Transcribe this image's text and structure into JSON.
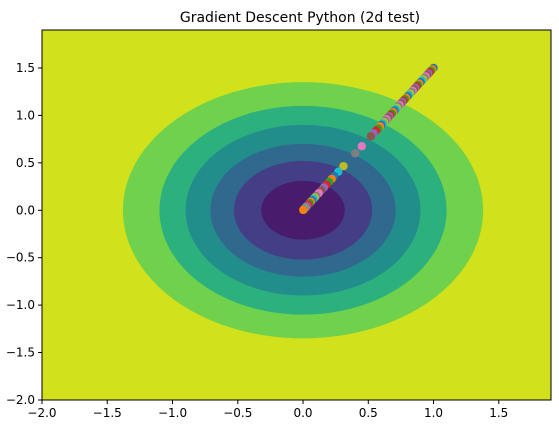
{
  "chart_data": {
    "type": "scatter",
    "subtype": "contour-with-scatter",
    "title": "Gradient Descent Python (2d test)",
    "xlabel": "",
    "ylabel": "",
    "xlim": [
      -2.0,
      1.9
    ],
    "ylim": [
      -2.0,
      1.9
    ],
    "x_ticks": [
      -2.0,
      -1.5,
      -1.0,
      -0.5,
      0.0,
      0.5,
      1.0,
      1.5
    ],
    "y_ticks": [
      -2.0,
      -1.5,
      -1.0,
      -0.5,
      0.0,
      0.5,
      1.0,
      1.5
    ],
    "x_tick_labels": [
      "−2.0",
      "−1.5",
      "−1.0",
      "−0.5",
      "0.0",
      "0.5",
      "1.0",
      "1.5"
    ],
    "y_tick_labels": [
      "−2.0",
      "−1.5",
      "−1.0",
      "−0.5",
      "0.0",
      "0.5",
      "1.0",
      "1.5"
    ],
    "grid": false,
    "legend": "none",
    "contour": {
      "center": [
        0.0,
        0.0
      ],
      "background_color": "#d1e11c",
      "levels": [
        {
          "x_radius": 1.38,
          "y_radius": 1.35,
          "color": "#6fd14c"
        },
        {
          "x_radius": 1.1,
          "y_radius": 1.1,
          "color": "#2cb17e"
        },
        {
          "x_radius": 0.9,
          "y_radius": 0.9,
          "color": "#218e8c"
        },
        {
          "x_radius": 0.71,
          "y_radius": 0.7,
          "color": "#30688e"
        },
        {
          "x_radius": 0.53,
          "y_radius": 0.52,
          "color": "#433e85"
        },
        {
          "x_radius": 0.32,
          "y_radius": 0.31,
          "color": "#481b6d"
        }
      ]
    },
    "palette": [
      "#1f77b4",
      "#ff7f0e",
      "#2ca02c",
      "#d62728",
      "#9467bd",
      "#8c564b",
      "#e377c2",
      "#7f7f7f",
      "#bcbd22",
      "#17becf"
    ],
    "points": [
      {
        "x": 1.0,
        "y": 1.5
      },
      {
        "x": 0.99,
        "y": 1.485
      },
      {
        "x": 0.98,
        "y": 1.47
      },
      {
        "x": 0.97,
        "y": 1.455
      },
      {
        "x": 0.96,
        "y": 1.44
      },
      {
        "x": 0.95,
        "y": 1.425
      },
      {
        "x": 0.94,
        "y": 1.41
      },
      {
        "x": 0.93,
        "y": 1.395
      },
      {
        "x": 0.92,
        "y": 1.38
      },
      {
        "x": 0.91,
        "y": 1.365
      },
      {
        "x": 0.9,
        "y": 1.35
      },
      {
        "x": 0.89,
        "y": 1.335
      },
      {
        "x": 0.88,
        "y": 1.32
      },
      {
        "x": 0.87,
        "y": 1.305
      },
      {
        "x": 0.86,
        "y": 1.29
      },
      {
        "x": 0.85,
        "y": 1.275
      },
      {
        "x": 0.84,
        "y": 1.26
      },
      {
        "x": 0.83,
        "y": 1.245
      },
      {
        "x": 0.82,
        "y": 1.23
      },
      {
        "x": 0.81,
        "y": 1.215
      },
      {
        "x": 0.8,
        "y": 1.2
      },
      {
        "x": 0.79,
        "y": 1.185
      },
      {
        "x": 0.78,
        "y": 1.17
      },
      {
        "x": 0.77,
        "y": 1.155
      },
      {
        "x": 0.76,
        "y": 1.14
      },
      {
        "x": 0.75,
        "y": 1.125
      },
      {
        "x": 0.74,
        "y": 1.11
      },
      {
        "x": 0.73,
        "y": 1.095
      },
      {
        "x": 0.72,
        "y": 1.08
      },
      {
        "x": 0.71,
        "y": 1.065
      },
      {
        "x": 0.7,
        "y": 1.05
      },
      {
        "x": 0.69,
        "y": 1.035
      },
      {
        "x": 0.68,
        "y": 1.02
      },
      {
        "x": 0.67,
        "y": 1.005
      },
      {
        "x": 0.66,
        "y": 0.99
      },
      {
        "x": 0.65,
        "y": 0.975
      },
      {
        "x": 0.64,
        "y": 0.96
      },
      {
        "x": 0.63,
        "y": 0.945
      },
      {
        "x": 0.62,
        "y": 0.93
      },
      {
        "x": 0.61,
        "y": 0.915
      },
      {
        "x": 0.6,
        "y": 0.9
      },
      {
        "x": 0.59,
        "y": 0.885
      },
      {
        "x": 0.575,
        "y": 0.86
      },
      {
        "x": 0.56,
        "y": 0.84
      },
      {
        "x": 0.54,
        "y": 0.81
      },
      {
        "x": 0.52,
        "y": 0.78
      },
      {
        "x": 0.45,
        "y": 0.675
      },
      {
        "x": 0.4,
        "y": 0.6
      },
      {
        "x": 0.31,
        "y": 0.465
      },
      {
        "x": 0.27,
        "y": 0.405
      },
      {
        "x": 0.24,
        "y": 0.36
      },
      {
        "x": 0.22,
        "y": 0.33
      },
      {
        "x": 0.2,
        "y": 0.3
      },
      {
        "x": 0.18,
        "y": 0.27
      },
      {
        "x": 0.16,
        "y": 0.24
      },
      {
        "x": 0.14,
        "y": 0.21
      },
      {
        "x": 0.12,
        "y": 0.18
      },
      {
        "x": 0.1,
        "y": 0.15
      },
      {
        "x": 0.09,
        "y": 0.135
      },
      {
        "x": 0.08,
        "y": 0.12
      },
      {
        "x": 0.07,
        "y": 0.105
      },
      {
        "x": 0.06,
        "y": 0.09
      },
      {
        "x": 0.05,
        "y": 0.075
      },
      {
        "x": 0.04,
        "y": 0.06
      },
      {
        "x": 0.03,
        "y": 0.045
      },
      {
        "x": 0.025,
        "y": 0.0375
      },
      {
        "x": 0.02,
        "y": 0.03
      },
      {
        "x": 0.015,
        "y": 0.0225
      },
      {
        "x": 0.01,
        "y": 0.015
      },
      {
        "x": 0.007,
        "y": 0.0105
      },
      {
        "x": 0.004,
        "y": 0.006
      },
      {
        "x": 0.002,
        "y": 0.003
      }
    ]
  }
}
